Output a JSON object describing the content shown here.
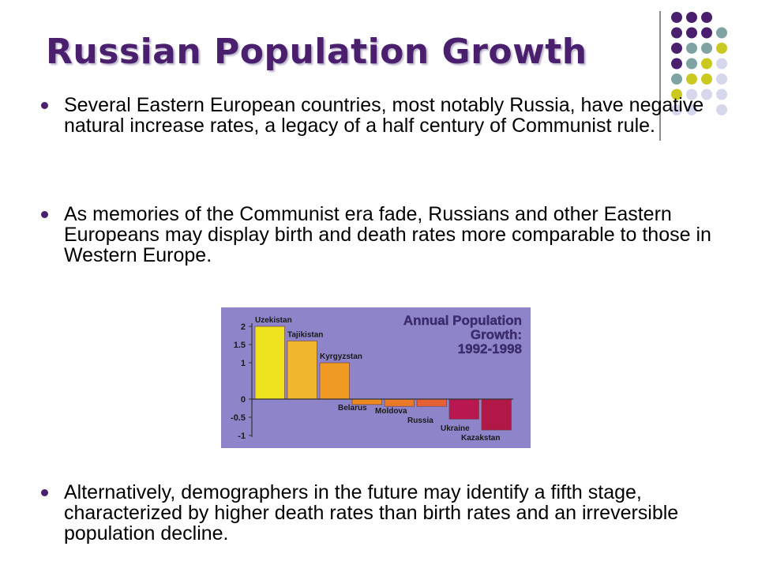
{
  "slide": {
    "title": "Russian Population Growth",
    "bullets": [
      "Several Eastern European countries, most notably Russia, have negative natural increase rates, a legacy of a half century of Communist rule.",
      "As memories of the Communist era fade, Russians and other Eastern Europeans may display birth and death rates more comparable to those in Western Europe.",
      "Alternatively, demographers in the future may identify a fifth stage, characterized by higher death rates than birth rates and an irreversible population decline."
    ]
  },
  "colors": {
    "title": "#4a1f6e",
    "bullet": "#4a1f6e",
    "chart_bg": "#8d84c9",
    "dot_purple": "#4a1f6e",
    "dot_teal": "#7fa3a3",
    "dot_yellow": "#c9c920",
    "dot_lavender": "#d6d6ec"
  },
  "chart_data": {
    "type": "bar",
    "title": "Annual Population Growth: 1992-1998",
    "categories": [
      "Uzekistan",
      "Tajikistan",
      "Kyrgyzstan",
      "Belarus",
      "Moldova",
      "Russia",
      "Ukraine",
      "Kazakstan"
    ],
    "values": [
      2.0,
      1.6,
      1.0,
      -0.15,
      -0.2,
      -0.2,
      -0.55,
      -0.85
    ],
    "bar_colors": [
      "#efe21f",
      "#f0b62c",
      "#ef9a22",
      "#ee8a22",
      "#ea7a2a",
      "#e56035",
      "#b9174f",
      "#b21847"
    ],
    "yticks": [
      "2",
      "1.5",
      "1",
      "0",
      "-0.5",
      "-1"
    ],
    "ylim": [
      -1,
      2
    ],
    "xlabel": "",
    "ylabel": "",
    "grid": false
  }
}
